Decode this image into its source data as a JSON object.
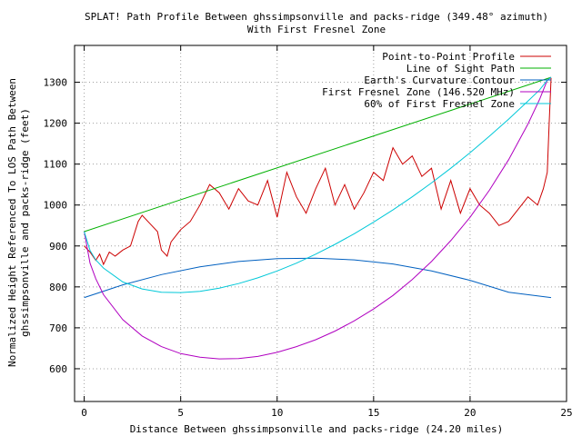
{
  "chart_data": {
    "type": "line",
    "title": "SPLAT! Path Profile Between ghssimpsonville and packs-ridge (349.48° azimuth)",
    "subtitle": "With First Fresnel Zone",
    "xlabel": "Distance Between ghssimpsonville and packs-ridge (24.20 miles)",
    "ylabel_line1": "Normalized Height Referenced To LOS Path Between",
    "ylabel_line2": "ghssimpsonville and packs-ridge (feet)",
    "xlim": [
      -0.5,
      25
    ],
    "ylim": [
      520,
      1390
    ],
    "xticks": [
      0,
      5,
      10,
      15,
      20,
      25
    ],
    "yticks": [
      600,
      700,
      800,
      900,
      1000,
      1100,
      1200,
      1300
    ],
    "grid": true,
    "legend_position": "top-right",
    "series": [
      {
        "name": "Point-to-Point Profile",
        "color": "#cc0000",
        "x": [
          0,
          0.3,
          0.6,
          0.8,
          1.0,
          1.3,
          1.6,
          2.0,
          2.4,
          2.8,
          3.0,
          3.5,
          3.8,
          4.0,
          4.3,
          4.5,
          5.0,
          5.5,
          6.0,
          6.5,
          7.0,
          7.5,
          8.0,
          8.5,
          9.0,
          9.5,
          10.0,
          10.5,
          11.0,
          11.5,
          12.0,
          12.5,
          13.0,
          13.5,
          14.0,
          14.5,
          15.0,
          15.5,
          16.0,
          16.5,
          17.0,
          17.5,
          18.0,
          18.5,
          19.0,
          19.5,
          20.0,
          20.5,
          21.0,
          21.5,
          22.0,
          22.5,
          23.0,
          23.5,
          23.8,
          24.0,
          24.1,
          24.2
        ],
        "y": [
          900,
          885,
          865,
          880,
          855,
          885,
          875,
          890,
          900,
          960,
          975,
          950,
          935,
          890,
          875,
          910,
          940,
          960,
          1000,
          1050,
          1030,
          990,
          1040,
          1010,
          1000,
          1060,
          970,
          1080,
          1020,
          980,
          1040,
          1090,
          1000,
          1050,
          990,
          1030,
          1080,
          1060,
          1140,
          1100,
          1120,
          1070,
          1090,
          990,
          1060,
          980,
          1040,
          1000,
          980,
          950,
          960,
          990,
          1020,
          1000,
          1040,
          1080,
          1200,
          1310
        ]
      },
      {
        "name": "Line of Sight Path",
        "color": "#00b000",
        "x": [
          0,
          24.2
        ],
        "y": [
          935,
          1312
        ]
      },
      {
        "name": "Earth's Curvature Contour",
        "color": "#0060c0",
        "x": [
          0,
          2,
          4,
          6,
          8,
          10,
          12,
          14,
          16,
          18,
          20,
          22,
          24.2
        ],
        "y": [
          774,
          805,
          830,
          849,
          862,
          869,
          870,
          866,
          856,
          839,
          816,
          787,
          774
        ]
      },
      {
        "name": "First Fresnel Zone (146.520 MHz)",
        "color": "#b000c0",
        "x": [
          0,
          0.3,
          0.6,
          1.0,
          2,
          3,
          4,
          5,
          6,
          7,
          8,
          9,
          10,
          11,
          12,
          13,
          14,
          15,
          16,
          17,
          18,
          19,
          20,
          21,
          22,
          23,
          23.6,
          24.0,
          24.2
        ],
        "y": [
          935,
          858,
          820,
          781,
          720,
          680,
          654,
          637,
          628,
          624,
          625,
          630,
          640,
          654,
          671,
          692,
          717,
          746,
          779,
          818,
          862,
          913,
          970,
          1036,
          1111,
          1198,
          1258,
          1305,
          1312
        ]
      },
      {
        "name": "60% of First Fresnel Zone",
        "color": "#00c8d8",
        "x": [
          0,
          0.3,
          0.6,
          1.0,
          2,
          3,
          4,
          5,
          6,
          7,
          8,
          9,
          10,
          11,
          12,
          13,
          14,
          15,
          16,
          17,
          18,
          19,
          20,
          21,
          22,
          23,
          23.6,
          24.0,
          24.2
        ],
        "y": [
          935,
          889,
          866,
          846,
          812,
          795,
          787,
          786,
          789,
          797,
          808,
          822,
          839,
          858,
          880,
          904,
          930,
          958,
          988,
          1020,
          1054,
          1090,
          1128,
          1168,
          1210,
          1254,
          1281,
          1305,
          1312
        ]
      }
    ]
  }
}
